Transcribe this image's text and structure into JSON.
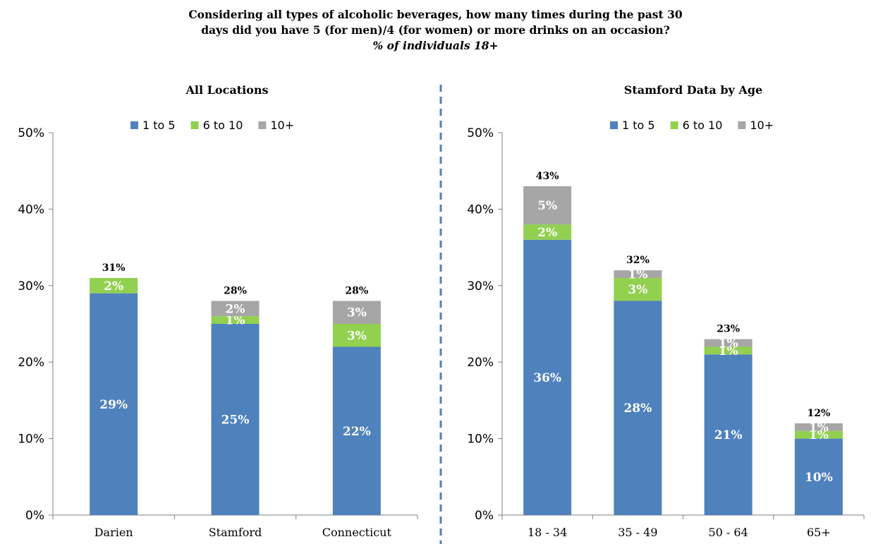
{
  "title": {
    "line1": "Considering all types of alcoholic beverages, how many times during the past 30",
    "line2": "days did you have 5 (for men)/4 (for women) or more drinks on an occasion?",
    "line3": "% of individuals 18+"
  },
  "colors": {
    "1 to 5": "#4f81bd",
    "6 to 10": "#92d050",
    "10+": "#a6a6a6",
    "divider": "#4f81bd"
  },
  "chart_data": [
    {
      "type": "bar",
      "stacked": true,
      "title": "All Locations",
      "categories": [
        "Darien",
        "Stamford",
        "Connecticut"
      ],
      "series": [
        {
          "name": "1 to 5",
          "values": [
            29,
            25,
            22
          ],
          "labels": [
            "29%",
            "25%",
            "22%"
          ]
        },
        {
          "name": "6 to 10",
          "values": [
            2,
            1,
            3
          ],
          "labels": [
            "2%",
            "1%",
            "3%"
          ]
        },
        {
          "name": "10+",
          "values": [
            0,
            2,
            3
          ],
          "labels": [
            "",
            "2%",
            "3%"
          ]
        }
      ],
      "totals": [
        "31%",
        "28%",
        "28%"
      ],
      "ylim": [
        0,
        50
      ],
      "yticks": [
        "0%",
        "10%",
        "20%",
        "30%",
        "40%",
        "50%"
      ],
      "legend": "top",
      "grid": false
    },
    {
      "type": "bar",
      "stacked": true,
      "title": "Stamford Data by Age",
      "categories": [
        "18 - 34",
        "35 - 49",
        "50 - 64",
        "65+"
      ],
      "series": [
        {
          "name": "1 to 5",
          "values": [
            36,
            28,
            21,
            10
          ],
          "labels": [
            "36%",
            "28%",
            "21%",
            "10%"
          ]
        },
        {
          "name": "6 to 10",
          "values": [
            2,
            3,
            1,
            1
          ],
          "labels": [
            "2%",
            "3%",
            "1%",
            "1%"
          ]
        },
        {
          "name": "10+",
          "values": [
            5,
            1,
            1,
            1
          ],
          "labels": [
            "5%",
            "1%",
            "1%",
            "1%"
          ]
        }
      ],
      "totals": [
        "43%",
        "32%",
        "23%",
        "12%"
      ],
      "ylim": [
        0,
        50
      ],
      "yticks": [
        "0%",
        "10%",
        "20%",
        "30%",
        "40%",
        "50%"
      ],
      "legend": "top",
      "grid": false
    }
  ]
}
